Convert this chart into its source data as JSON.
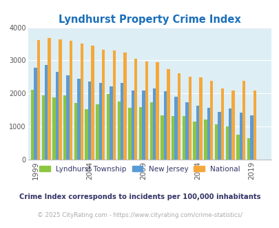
{
  "title": "Lyndhurst Property Crime Index",
  "title_color": "#1a6fba",
  "years": [
    1999,
    2000,
    2001,
    2002,
    2003,
    2004,
    2005,
    2006,
    2007,
    2008,
    2009,
    2010,
    2011,
    2012,
    2013,
    2014,
    2015,
    2016,
    2017,
    2018,
    2019
  ],
  "lyndhurst": [
    2120,
    1940,
    1880,
    1940,
    1720,
    1520,
    1670,
    1980,
    1760,
    1570,
    1590,
    1730,
    1340,
    1310,
    1310,
    1150,
    1220,
    1060,
    1010,
    760,
    650
  ],
  "new_jersey": [
    2780,
    2860,
    2650,
    2560,
    2450,
    2360,
    2310,
    2210,
    2310,
    2090,
    2080,
    2150,
    2070,
    1910,
    1730,
    1640,
    1560,
    1440,
    1550,
    1430,
    1340
  ],
  "national": [
    3620,
    3670,
    3630,
    3600,
    3510,
    3440,
    3330,
    3300,
    3230,
    3050,
    2960,
    2940,
    2730,
    2610,
    2510,
    2490,
    2380,
    2160,
    2100,
    2390,
    2100
  ],
  "lyndhurst_color": "#8dc63f",
  "nj_color": "#5b9bd5",
  "national_color": "#f5a83a",
  "background_color": "#ddeef5",
  "ylim": [
    0,
    4000
  ],
  "yticks": [
    0,
    1000,
    2000,
    3000,
    4000
  ],
  "subtitle": "Crime Index corresponds to incidents per 100,000 inhabitants",
  "subtitle_color": "#333366",
  "footer": "© 2025 CityRating.com - https://www.cityrating.com/crime-statistics/",
  "footer_color": "#aaaaaa",
  "legend_labels": [
    "Lyndhurst Township",
    "New Jersey",
    "National"
  ],
  "xtick_years": [
    1999,
    2004,
    2009,
    2014,
    2019
  ]
}
